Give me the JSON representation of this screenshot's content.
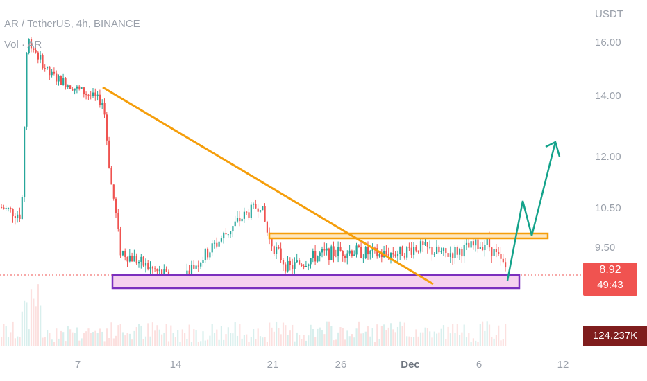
{
  "header": {
    "symbol_title": "AR / TetherUS, 4h, BINANCE",
    "volume_label": "Vol · AR"
  },
  "axis": {
    "currency": "USDT",
    "price_ticks": [
      "16.00",
      "14.00",
      "12.00",
      "10.50",
      "9.50"
    ],
    "time_ticks": [
      "7",
      "14",
      "21",
      "26",
      "Dec",
      "6",
      "12"
    ]
  },
  "last_price_tag": {
    "price": "8.92",
    "countdown": "49:43"
  },
  "volume_tag": {
    "value": "124.237K"
  },
  "colors": {
    "up": "#26a69a",
    "down": "#ef5350",
    "trendline": "#f59e0b",
    "support_box": "#7b2fbe",
    "support_fill": "#f6d1ef",
    "projection_arrow": "#14a38b",
    "price_line": "#ef5350"
  },
  "chart_data": {
    "type": "candlestick",
    "symbol": "AR / TetherUS",
    "interval": "4h",
    "exchange": "BINANCE",
    "y_unit": "USDT",
    "y_ticks": [
      16.0,
      14.0,
      12.0,
      10.5,
      9.5
    ],
    "x_ticks": [
      "7",
      "14",
      "21",
      "26",
      "Dec",
      "6",
      "12"
    ],
    "last_price": 8.92,
    "price_path": [
      {
        "x": "2",
        "close": 10.5
      },
      {
        "x": "3",
        "close": 10.3
      },
      {
        "x": "4",
        "close": 16.5
      },
      {
        "x": "6",
        "close": 15.2
      },
      {
        "x": "8",
        "close": 14.2
      },
      {
        "x": "9",
        "close": 11.5
      },
      {
        "x": "10",
        "close": 9.4
      },
      {
        "x": "12",
        "close": 8.95
      },
      {
        "x": "14",
        "close": 8.6
      },
      {
        "x": "16",
        "close": 9.3
      },
      {
        "x": "18",
        "close": 10.2
      },
      {
        "x": "20",
        "close": 10.6
      },
      {
        "x": "21",
        "close": 9.7
      },
      {
        "x": "22",
        "close": 8.95
      },
      {
        "x": "24",
        "close": 9.3
      },
      {
        "x": "26",
        "close": 9.4
      },
      {
        "x": "28",
        "close": 9.3
      },
      {
        "x": "30",
        "close": 9.35
      },
      {
        "x": "Dec 2",
        "close": 9.5
      },
      {
        "x": "Dec 4",
        "close": 9.3
      },
      {
        "x": "Dec 6",
        "close": 9.6
      },
      {
        "x": "Dec 7",
        "close": 8.92
      }
    ],
    "annotations": {
      "descending_trendline": {
        "from": {
          "x": "8",
          "y": 14.3
        },
        "to": {
          "x": "Dec 3",
          "y": 8.75
        }
      },
      "resistance_zone": {
        "from_x": "21",
        "to_x": "Dec 9",
        "y_low": 9.7,
        "y_high": 9.82
      },
      "support_zone": {
        "from_x": "8",
        "to_x": "Dec 8",
        "y_low": 8.5,
        "y_high": 8.88
      },
      "projection_path": [
        {
          "x": "Dec 7",
          "y": 8.75
        },
        {
          "x": "Dec 8",
          "y": 10.75
        },
        {
          "x": "Dec 9",
          "y": 9.75
        },
        {
          "x": "Dec 11",
          "y": 12.15
        }
      ]
    }
  }
}
